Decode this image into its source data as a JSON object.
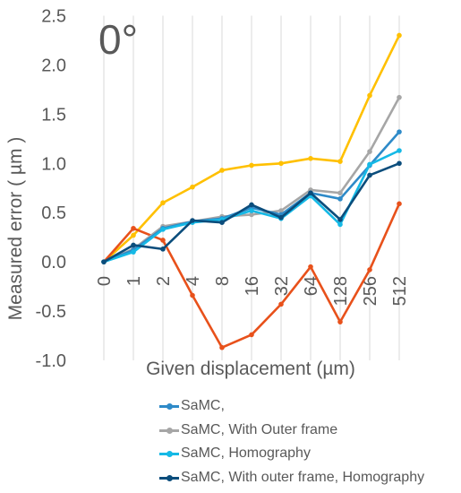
{
  "chart_data": {
    "type": "line",
    "title": "0°",
    "xlabel": "Given displacement (µm)",
    "ylabel": "Measured error ( µm )",
    "categories": [
      "0",
      "1",
      "2",
      "4",
      "8",
      "16",
      "32",
      "64",
      "128",
      "256",
      "512"
    ],
    "y_ticks": [
      "2.5",
      "2.0",
      "1.5",
      "1.0",
      "0.5",
      "0.0",
      "-0.5",
      "-1.0"
    ],
    "ylim": [
      -1.0,
      2.5
    ],
    "grid": "vertical",
    "legend_position": "bottom",
    "series": [
      {
        "name": "",
        "color": "#ffc000",
        "values": [
          0.0,
          0.27,
          0.6,
          0.76,
          0.93,
          0.98,
          1.0,
          1.05,
          1.02,
          1.69,
          2.3
        ]
      },
      {
        "name": "",
        "color": "#e8511b",
        "values": [
          0.0,
          0.34,
          0.22,
          -0.34,
          -0.87,
          -0.74,
          -0.43,
          -0.05,
          -0.61,
          -0.08,
          0.59
        ]
      },
      {
        "name": "SaMC, With Outer frame",
        "color": "#a6a6a6",
        "values": [
          0.0,
          0.13,
          0.36,
          0.41,
          0.46,
          0.48,
          0.52,
          0.73,
          0.7,
          1.12,
          1.67
        ]
      },
      {
        "name": "SaMC,",
        "color": "#2e8ac8",
        "values": [
          0.0,
          0.12,
          0.34,
          0.41,
          0.44,
          0.55,
          0.48,
          0.7,
          0.64,
          0.98,
          1.32
        ]
      },
      {
        "name": "SaMC,  Homography",
        "color": "#15b9e6",
        "values": [
          0.0,
          0.1,
          0.33,
          0.4,
          0.43,
          0.52,
          0.44,
          0.67,
          0.38,
          0.99,
          1.13
        ]
      },
      {
        "name": "SaMC, With outer frame, Homography",
        "color": "#0b4d7c",
        "values": [
          0.0,
          0.17,
          0.13,
          0.42,
          0.4,
          0.58,
          0.45,
          0.7,
          0.43,
          0.88,
          1.0
        ]
      }
    ],
    "legend": [
      {
        "label": "SaMC,",
        "color": "#2e8ac8"
      },
      {
        "label": "SaMC, With Outer frame",
        "color": "#a6a6a6"
      },
      {
        "label": "SaMC,  Homography",
        "color": "#15b9e6"
      },
      {
        "label": "SaMC, With outer frame, Homography",
        "color": "#0b4d7c"
      }
    ]
  }
}
